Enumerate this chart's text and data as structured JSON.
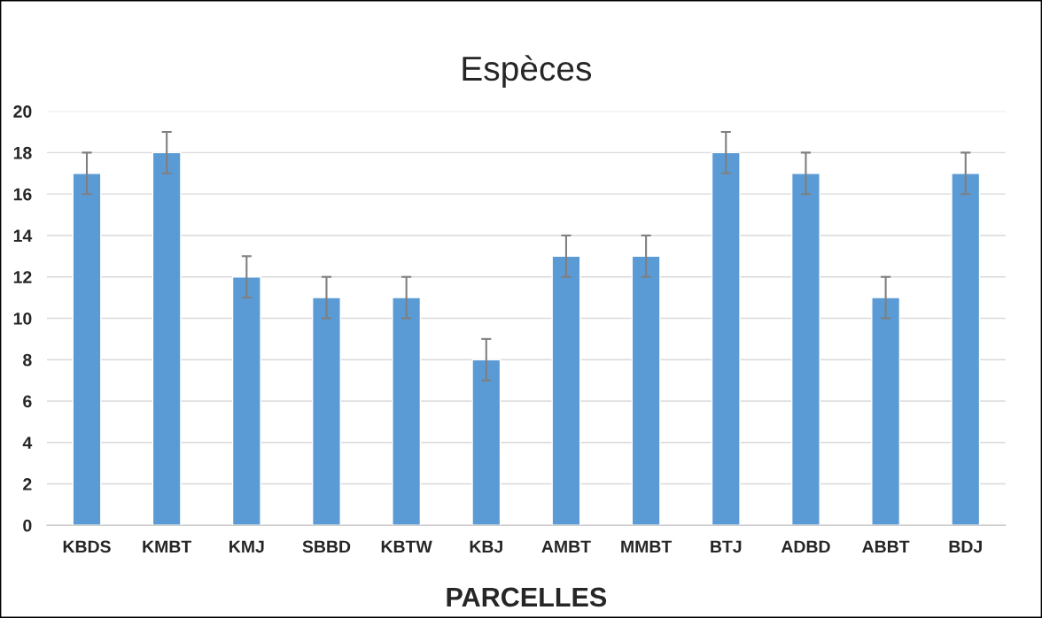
{
  "chart_data": {
    "type": "bar",
    "title": "Espèces",
    "xlabel": "PARCELLES",
    "categories": [
      "KBDS",
      "KMBT",
      "KMJ",
      "SBBD",
      "KBTW",
      "KBJ",
      "AMBT",
      "MMBT",
      "BTJ",
      "ADBD",
      "ABBT",
      "BDJ"
    ],
    "values": [
      17,
      18,
      12,
      11,
      11,
      8,
      13,
      13,
      18,
      17,
      11,
      17
    ],
    "errors": [
      1,
      1,
      1,
      1,
      1,
      1,
      1,
      1,
      1,
      1,
      1,
      1
    ],
    "color": "#5b9bd5",
    "ylim": [
      0,
      20
    ],
    "yticks": [
      0,
      2,
      4,
      6,
      8,
      10,
      12,
      14,
      16,
      18,
      20
    ],
    "grid": "y"
  }
}
